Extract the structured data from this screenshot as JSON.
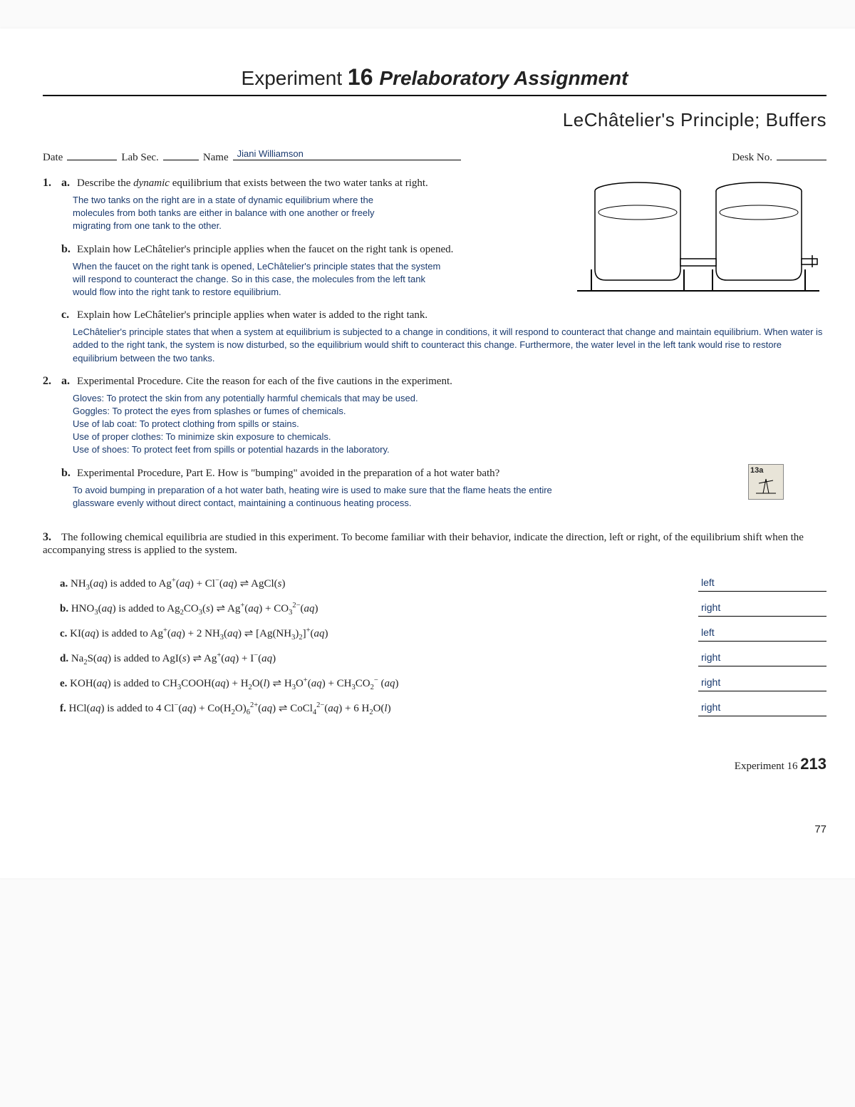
{
  "title": {
    "exp": "Experiment ",
    "num": "16 ",
    "prelab": "Prelaboratory Assignment"
  },
  "subtitle": "LeChâtelier's Principle; Buffers",
  "header": {
    "date_label": "Date",
    "labsec_label": "Lab Sec.",
    "name_label": "Name",
    "name_value": "Jiani Williamson",
    "desk_label": "Desk No."
  },
  "q1": {
    "a_prompt_pre": "Describe the ",
    "a_prompt_em": "dynamic",
    "a_prompt_post": " equilibrium that exists between the two water tanks at right.",
    "a_answer": "The two tanks on the right are in a state of dynamic equilibrium where the molecules from both tanks are either in balance with one another or freely migrating from one tank to the other.",
    "b_prompt": "Explain how LeChâtelier's principle applies when the faucet on the right tank is opened.",
    "b_answer": "When the faucet on the right tank is opened, LeChâtelier's principle states that the system will respond to counteract the change. So in this case, the molecules from the left tank would flow into the right tank to restore equilibrium.",
    "c_prompt": "Explain how LeChâtelier's principle applies when water is added to the right tank.",
    "c_answer": "LeChâtelier's principle states that when a system at equilibrium is subjected to a change in conditions, it will respond to counteract that change and maintain equilibrium. When water is added to the right tank, the system is now disturbed, so the equilibrium would shift to counteract this change. Furthermore, the water level in the left tank would rise to restore equilibrium between the two tanks."
  },
  "q2": {
    "a_prompt": "Experimental Procedure. Cite the reason for each of the five cautions in the experiment.",
    "a_answer": "Gloves: To protect the skin from any potentially harmful chemicals that may be used.\nGoggles: To protect the eyes from splashes or fumes of chemicals.\nUse of lab coat: To protect clothing from spills or stains.\nUse of proper clothes: To minimize skin exposure to chemicals.\nUse of shoes: To protect feet from spills or potential hazards in the laboratory.",
    "b_prompt": "Experimental Procedure, Part E. How is \"bumping\" avoided in the preparation of a hot water bath?",
    "b_answer": "To avoid bumping in preparation of a hot water bath, heating wire is used to make sure that the flame heats the entire glassware evenly without direct contact, maintaining a continuous heating process.",
    "stamp_label": "13a"
  },
  "q3": {
    "intro": "The following chemical equilibria are studied in this experiment. To become familiar with their behavior, indicate the direction, left or right, of the equilibrium shift when the accompanying stress is applied to the system.",
    "rows": [
      {
        "letter": "a.",
        "eq_html": "NH<sub>3</sub>(<i>aq</i>) is added to Ag<sup>+</sup>(<i>aq</i>) + Cl<sup>−</sup>(<i>aq</i>) ⇌ AgCl(<i>s</i>)",
        "ans": "left"
      },
      {
        "letter": "b.",
        "eq_html": "HNO<sub>3</sub>(<i>aq</i>) is added to Ag<sub>2</sub>CO<sub>3</sub>(<i>s</i>) ⇌ Ag<sup>+</sup>(<i>aq</i>) + CO<sub>3</sub><sup>2−</sup>(<i>aq</i>)",
        "ans": "right"
      },
      {
        "letter": "c.",
        "eq_html": "KI(<i>aq</i>) is added to Ag<sup>+</sup>(<i>aq</i>) + 2 NH<sub>3</sub>(<i>aq</i>) ⇌ [Ag(NH<sub>3</sub>)<sub>2</sub>]<sup>+</sup>(<i>aq</i>)",
        "ans": "left"
      },
      {
        "letter": "d.",
        "eq_html": "Na<sub>2</sub>S(<i>aq</i>) is added to AgI(<i>s</i>) ⇌ Ag<sup>+</sup>(<i>aq</i>) + I<sup>−</sup>(<i>aq</i>)",
        "ans": "right"
      },
      {
        "letter": "e.",
        "eq_html": "KOH(<i>aq</i>) is added to CH<sub>3</sub>COOH(<i>aq</i>) + H<sub>2</sub>O(<i>l</i>) ⇌ H<sub>3</sub>O<sup>+</sup>(<i>aq</i>) + CH<sub>3</sub>CO<sub>2</sub><sup>−</sup> (<i>aq</i>)",
        "ans": "right"
      },
      {
        "letter": "f.",
        "eq_html": "HCl(<i>aq</i>) is added to 4 Cl<sup>−</sup>(<i>aq</i>) + Co(H<sub>2</sub>O)<sub>6</sub><sup>2+</sup>(<i>aq</i>) ⇌ CoCl<sub>4</sub><sup>2−</sup>(<i>aq</i>) + 6 H<sub>2</sub>O(<i>l</i>)",
        "ans": "right"
      }
    ]
  },
  "footer": {
    "exp_label": "Experiment 16 ",
    "exp_page": "213",
    "doc_page": "77"
  },
  "colors": {
    "answer_text": "#1a3a6e",
    "body_text": "#222222",
    "page_bg": "#ffffff"
  }
}
